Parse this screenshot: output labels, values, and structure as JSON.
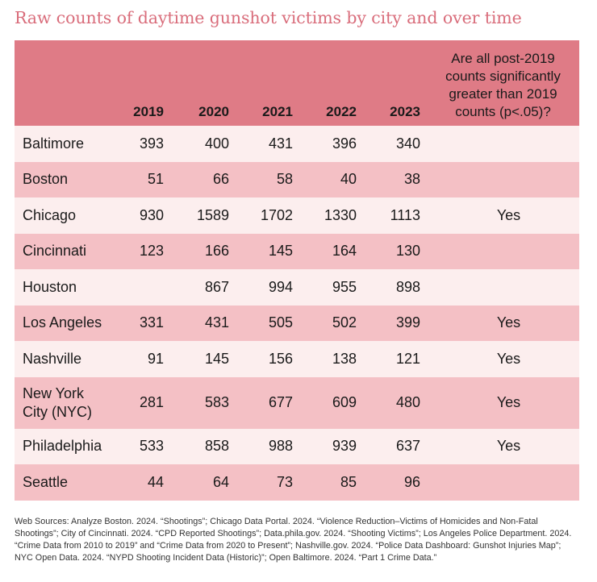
{
  "title": "Raw counts of daytime gunshot victims by city and over time",
  "colors": {
    "title": "#d96d7b",
    "header_bg": "#df7b86",
    "row_light": "#fceeee",
    "row_dark": "#f4c0c5"
  },
  "chart_data": {
    "type": "table",
    "title": "Raw counts of daytime gunshot victims by city and over time",
    "columns": [
      "2019",
      "2020",
      "2021",
      "2022",
      "2023"
    ],
    "significance_header": "Are all post-2019\ncounts significantly\ngreater than 2019\ncounts (p<.05)?",
    "rows": [
      {
        "city": "Baltimore",
        "values": [
          "393",
          "400",
          "431",
          "396",
          "340"
        ],
        "significant": ""
      },
      {
        "city": "Boston",
        "values": [
          "51",
          "66",
          "58",
          "40",
          "38"
        ],
        "significant": ""
      },
      {
        "city": "Chicago",
        "values": [
          "930",
          "1589",
          "1702",
          "1330",
          "1113"
        ],
        "significant": "Yes"
      },
      {
        "city": "Cincinnati",
        "values": [
          "123",
          "166",
          "145",
          "164",
          "130"
        ],
        "significant": ""
      },
      {
        "city": "Houston",
        "values": [
          "",
          "867",
          "994",
          "955",
          "898"
        ],
        "significant": ""
      },
      {
        "city": "Los Angeles",
        "values": [
          "331",
          "431",
          "505",
          "502",
          "399"
        ],
        "significant": "Yes"
      },
      {
        "city": "Nashville",
        "values": [
          "91",
          "145",
          "156",
          "138",
          "121"
        ],
        "significant": "Yes"
      },
      {
        "city": "New York\nCity (NYC)",
        "values": [
          "281",
          "583",
          "677",
          "609",
          "480"
        ],
        "significant": "Yes"
      },
      {
        "city": "Philadelphia",
        "values": [
          "533",
          "858",
          "988",
          "939",
          "637"
        ],
        "significant": "Yes"
      },
      {
        "city": "Seattle",
        "values": [
          "44",
          "64",
          "73",
          "85",
          "96"
        ],
        "significant": ""
      }
    ]
  },
  "sources": "Web Sources: Analyze Boston. 2024. “Shootings”; Chicago Data Portal. 2024. “Violence Reduction–Victims of Homicides and Non-Fatal Shootings”; City of Cincinnati. 2024. “CPD Reported Shootings”; Data.phila.gov. 2024. “Shooting Victims”; Los Angeles Police Department. 2024. “Crime Data from 2010 to 2019” and “Crime Data from 2020 to Present”; Nashville.gov. 2024. “Police Data Dashboard: Gunshot Injuries Map”; NYC Open Data. 2024. “NYPD Shooting Incident Data (Historic)”; Open Baltimore. 2024. “Part 1 Crime Data.”"
}
